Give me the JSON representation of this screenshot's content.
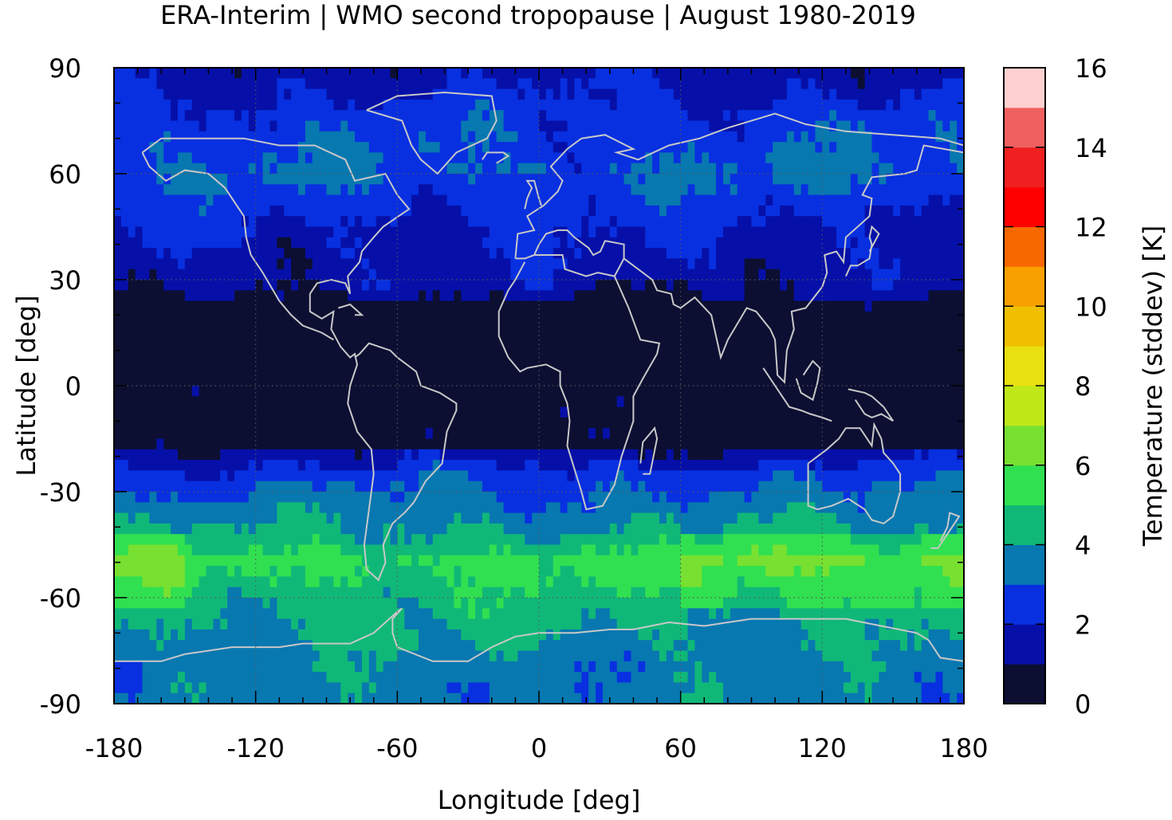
{
  "title": "ERA-Interim | WMO second tropopause | August 1980-2019",
  "chart_data": {
    "type": "heatmap",
    "title": "ERA-Interim | WMO second tropopause | August 1980-2019",
    "xlabel": "Longitude [deg]",
    "ylabel": "Latitude [deg]",
    "colorbar_label": "Temperature (stddev) [K]",
    "xlim": [
      -180,
      180
    ],
    "ylim": [
      -90,
      90
    ],
    "x_ticks": [
      -180,
      -120,
      -60,
      0,
      60,
      120,
      180
    ],
    "x_tick_labels": [
      "-180",
      "-120",
      "-60",
      "0",
      "60",
      "120",
      "180"
    ],
    "y_ticks": [
      90,
      60,
      30,
      0,
      -30,
      -60,
      -90
    ],
    "y_tick_labels": [
      "90",
      "60",
      "30",
      "0",
      "-30",
      "-60",
      "-90"
    ],
    "colorbar_ticks": [
      16,
      14,
      12,
      10,
      8,
      6,
      4,
      2,
      0
    ],
    "colorbar_tick_labels": [
      "16",
      "14",
      "12",
      "10",
      "8",
      "6",
      "4",
      "2",
      "0"
    ],
    "colorbar_range": [
      0,
      16
    ],
    "colorbar_colors": [
      "#0c0f32",
      "#0610a8",
      "#0830e0",
      "#0878b0",
      "#10b878",
      "#30e050",
      "#78e030",
      "#c0e818",
      "#e8e010",
      "#f0c000",
      "#f8a000",
      "#f86800",
      "#ff0000",
      "#f02020",
      "#f06060",
      "#ffd0d0"
    ],
    "grid": true,
    "zonal_mean_stddev_by_latitude": {
      "lat": [
        90,
        75,
        60,
        45,
        30,
        20,
        10,
        0,
        -10,
        -20,
        -25,
        -35,
        -45,
        -50,
        -55,
        -60,
        -70,
        -80,
        -90
      ],
      "value": [
        1.5,
        2.5,
        3,
        2,
        1.5,
        0.5,
        0.5,
        0.5,
        0.5,
        1.5,
        2.5,
        3.5,
        4.5,
        5.5,
        5,
        4.5,
        4,
        3.5,
        3.5
      ]
    },
    "coastline_color": "#c8c8c8"
  }
}
